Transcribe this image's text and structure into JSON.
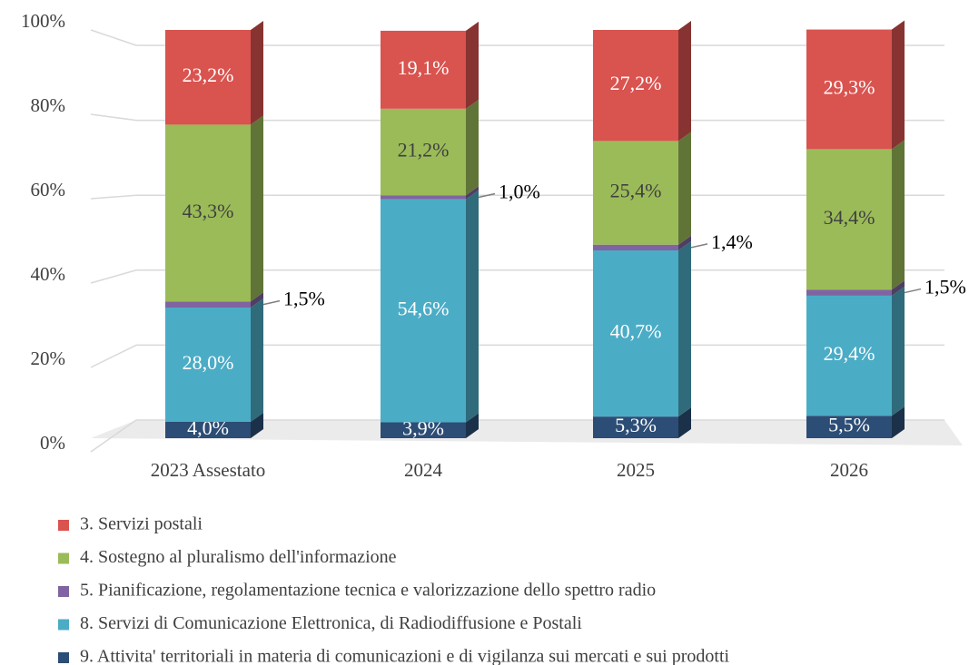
{
  "chart_data": {
    "type": "bar",
    "stacked": true,
    "categories": [
      "2023 Assestato",
      "2024",
      "2025",
      "2026"
    ],
    "series": [
      {
        "name": "3. Servizi postali",
        "color": "#d9534f",
        "values": [
          23.2,
          19.1,
          27.2,
          29.3
        ],
        "value_labels": [
          "23,2%",
          "19,1%",
          "27,2%",
          "29,3%"
        ]
      },
      {
        "name": "4. Sostegno al pluralismo dell'informazione",
        "color": "#9bbb59",
        "values": [
          43.3,
          21.2,
          25.4,
          34.4
        ],
        "value_labels": [
          "43,3%",
          "21,2%",
          "25,4%",
          "34,4%"
        ]
      },
      {
        "name": "5. Pianificazione, regolamentazione tecnica e valorizzazione dello spettro radio",
        "color": "#8064a2",
        "values": [
          1.5,
          1.0,
          1.4,
          1.5
        ],
        "value_labels": [
          "1,5%",
          "1,0%",
          "1,4%",
          "1,5%"
        ]
      },
      {
        "name": "8. Servizi di Comunicazione Elettronica, di Radiodiffusione e Postali",
        "color": "#4bacc6",
        "values": [
          28.0,
          54.6,
          40.7,
          29.4
        ],
        "value_labels": [
          "28,0%",
          "54,6%",
          "40,7%",
          "29,4%"
        ]
      },
      {
        "name": "9. Attivita' territoriali in materia di comunicazioni e di vigilanza sui mercati e sui prodotti",
        "color": "#2c4d75",
        "values": [
          4.0,
          3.9,
          5.3,
          5.5
        ],
        "value_labels": [
          "4,0%",
          "3,9%",
          "5,3%",
          "5,5%"
        ]
      }
    ],
    "ylim": [
      0,
      100
    ],
    "yticks": [
      {
        "value": 0,
        "label": "0%"
      },
      {
        "value": 20,
        "label": "20%"
      },
      {
        "value": 40,
        "label": "40%"
      },
      {
        "value": 60,
        "label": "60%"
      },
      {
        "value": 80,
        "label": "80%"
      },
      {
        "value": 100,
        "label": "100%"
      }
    ],
    "grid": true,
    "legend": "bottom"
  }
}
